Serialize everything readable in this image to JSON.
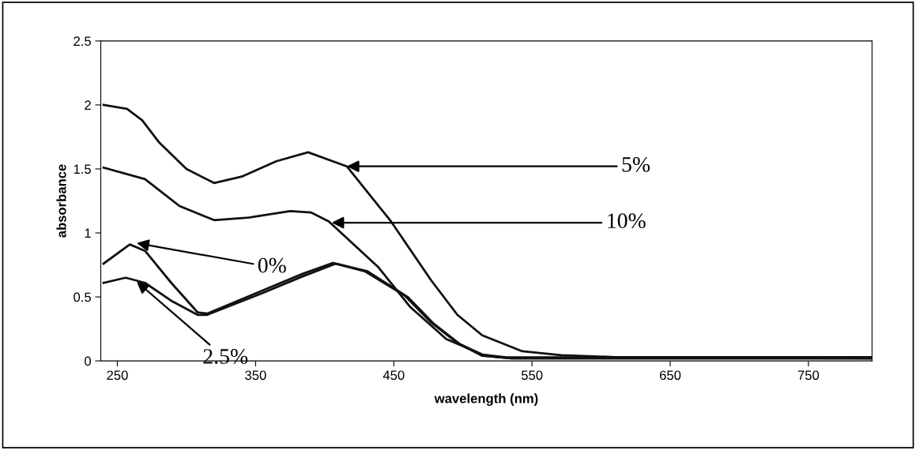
{
  "chart_data": {
    "type": "line",
    "xlabel": "wavelength (nm)",
    "ylabel": "absorbance",
    "xlim": [
      238,
      796
    ],
    "xticks": [
      250,
      350,
      450,
      550,
      650,
      750
    ],
    "ylim": [
      0,
      2.5
    ],
    "yticks": [
      0,
      0.5,
      1,
      1.5,
      2,
      2.5
    ],
    "grid": false,
    "legend": false,
    "marker": "none",
    "line_style": "solid",
    "series": [
      {
        "color": "#111111",
        "x": [
          240,
          257,
          268,
          280,
          300,
          320,
          340,
          365,
          388,
          416,
          448,
          477,
          496,
          514,
          543,
          571,
          610,
          796
        ],
        "values": [
          2.0,
          1.97,
          1.88,
          1.71,
          1.5,
          1.39,
          1.44,
          1.56,
          1.63,
          1.52,
          1.09,
          0.63,
          0.36,
          0.2,
          0.075,
          0.045,
          0.03,
          0.03
        ]
      },
      {
        "color": "#111111",
        "x": [
          240,
          270,
          295,
          320,
          345,
          375,
          390,
          403,
          439,
          462,
          488,
          514,
          530,
          796
        ],
        "values": [
          1.51,
          1.42,
          1.21,
          1.1,
          1.12,
          1.17,
          1.16,
          1.09,
          0.73,
          0.42,
          0.17,
          0.05,
          0.03,
          0.02
        ]
      },
      {
        "color": "#111111",
        "x": [
          240,
          259,
          270,
          289,
          308,
          315,
          355,
          384,
          406,
          429,
          458,
          477,
          496,
          514,
          535,
          796
        ],
        "values": [
          0.76,
          0.91,
          0.86,
          0.61,
          0.38,
          0.37,
          0.55,
          0.68,
          0.765,
          0.7,
          0.51,
          0.3,
          0.14,
          0.04,
          0.02,
          0.02
        ]
      },
      {
        "color": "#111111",
        "x": [
          240,
          256,
          270,
          289,
          308,
          315,
          355,
          384,
          408,
          431,
          460,
          479,
          498,
          516,
          535,
          796
        ],
        "values": [
          0.61,
          0.65,
          0.61,
          0.47,
          0.36,
          0.36,
          0.53,
          0.66,
          0.76,
          0.7,
          0.5,
          0.29,
          0.13,
          0.04,
          0.02,
          0.02
        ]
      }
    ],
    "annotations": [
      {
        "text": "5%",
        "x": 416,
        "y": 1.52
      },
      {
        "text": "10%",
        "x": 405,
        "y": 1.08
      },
      {
        "text": "0%",
        "x": 264,
        "y": 0.92
      },
      {
        "text": "2.5%",
        "x": 264,
        "y": 0.62
      }
    ]
  }
}
